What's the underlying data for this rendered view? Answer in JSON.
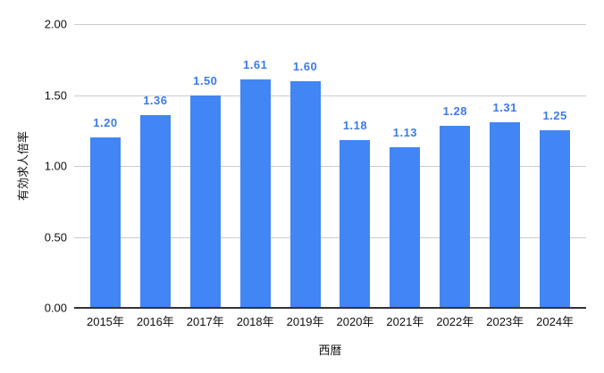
{
  "chart_data": {
    "type": "bar",
    "categories": [
      "2015年",
      "2016年",
      "2017年",
      "2018年",
      "2019年",
      "2020年",
      "2021年",
      "2022年",
      "2023年",
      "2024年"
    ],
    "values": [
      1.2,
      1.36,
      1.5,
      1.61,
      1.6,
      1.18,
      1.13,
      1.28,
      1.31,
      1.25
    ],
    "value_labels": [
      "1.20",
      "1.36",
      "1.50",
      "1.61",
      "1.60",
      "1.18",
      "1.13",
      "1.28",
      "1.31",
      "1.25"
    ],
    "title": "",
    "xlabel": "西暦",
    "ylabel": "有効求人倍率",
    "ylim": [
      0,
      2
    ],
    "y_ticks": [
      "0.00",
      "0.50",
      "1.00",
      "1.50",
      "2.00"
    ],
    "grid": true,
    "legend_position": "none",
    "colors": {
      "bar": "#4285f4",
      "data_label": "#3d7be5",
      "gridline": "#cccccc",
      "axis_line": "#333333",
      "tick_text": "#111111",
      "background": "#ffffff"
    }
  }
}
